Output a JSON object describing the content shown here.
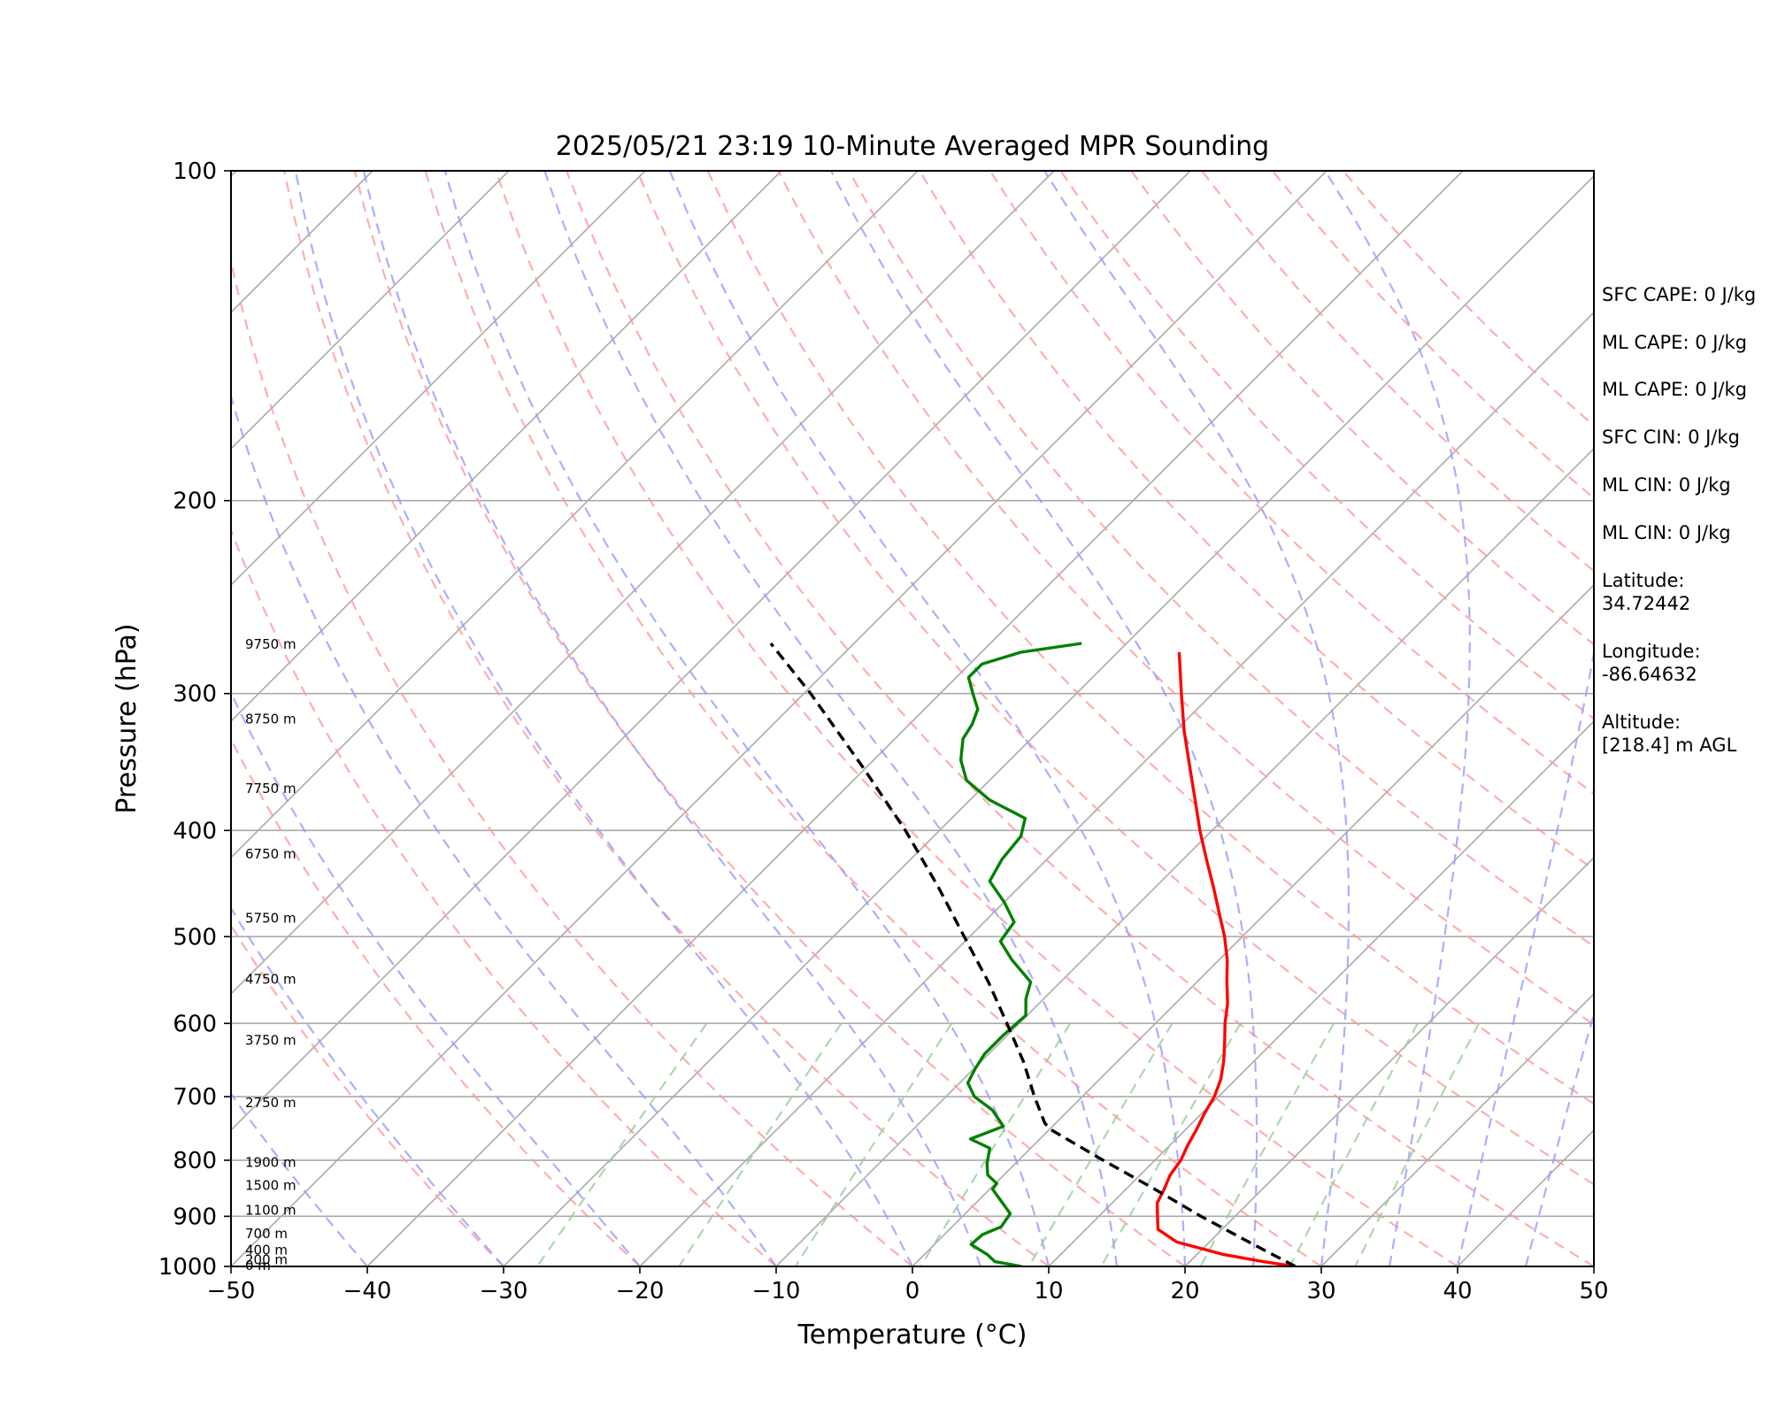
{
  "chart_data": {
    "type": "line",
    "title": "2025/05/21 23:19 10-Minute Averaged MPR Sounding",
    "xlabel": "Temperature (°C)",
    "ylabel": "Pressure (hPa)",
    "xlim": [
      -50,
      50
    ],
    "ylim": [
      1000,
      100
    ],
    "yscale": "log",
    "skew": true,
    "x_ticks": [
      "−50",
      "−40",
      "−30",
      "−20",
      "−10",
      "0",
      "10",
      "20",
      "30",
      "40",
      "50"
    ],
    "y_ticks": [
      "100",
      "200",
      "300",
      "400",
      "500",
      "600",
      "700",
      "800",
      "900",
      "1000"
    ],
    "series": [
      {
        "role": "temperature",
        "color": "#ff0000",
        "points": [
          [
            1000,
            28.1
          ],
          [
            990,
            25.4
          ],
          [
            975,
            21.9
          ],
          [
            950,
            17.6
          ],
          [
            925,
            15.3
          ],
          [
            900,
            14.3
          ],
          [
            875,
            13.3
          ],
          [
            850,
            12.8
          ],
          [
            825,
            12.2
          ],
          [
            800,
            11.9
          ],
          [
            775,
            11.3
          ],
          [
            750,
            10.8
          ],
          [
            725,
            10.2
          ],
          [
            700,
            9.7
          ],
          [
            675,
            8.9
          ],
          [
            650,
            7.8
          ],
          [
            625,
            6.5
          ],
          [
            600,
            5.1
          ],
          [
            575,
            3.8
          ],
          [
            550,
            2.2
          ],
          [
            525,
            0.6
          ],
          [
            500,
            -1.3
          ],
          [
            475,
            -3.5
          ],
          [
            450,
            -5.8
          ],
          [
            425,
            -8.3
          ],
          [
            400,
            -10.9
          ],
          [
            375,
            -13.5
          ],
          [
            350,
            -16.3
          ],
          [
            325,
            -19.3
          ],
          [
            300,
            -22.3
          ],
          [
            275,
            -25.5
          ]
        ]
      },
      {
        "role": "dewpoint",
        "color": "#008000",
        "points": [
          [
            1000,
            8.0
          ],
          [
            990,
            5.7
          ],
          [
            975,
            4.6
          ],
          [
            955,
            2.7
          ],
          [
            935,
            2.8
          ],
          [
            920,
            3.6
          ],
          [
            895,
            3.3
          ],
          [
            870,
            1.6
          ],
          [
            850,
            0.2
          ],
          [
            840,
            0.1
          ],
          [
            825,
            -1.2
          ],
          [
            805,
            -2.1
          ],
          [
            780,
            -3.0
          ],
          [
            765,
            -5.1
          ],
          [
            745,
            -3.6
          ],
          [
            720,
            -5.6
          ],
          [
            700,
            -7.9
          ],
          [
            680,
            -9.4
          ],
          [
            660,
            -9.9
          ],
          [
            640,
            -10.3
          ],
          [
            615,
            -10.3
          ],
          [
            590,
            -10.1
          ],
          [
            570,
            -11.3
          ],
          [
            550,
            -12.2
          ],
          [
            525,
            -15.2
          ],
          [
            505,
            -17.4
          ],
          [
            485,
            -17.8
          ],
          [
            465,
            -20.0
          ],
          [
            445,
            -22.6
          ],
          [
            425,
            -23.3
          ],
          [
            405,
            -23.6
          ],
          [
            390,
            -24.6
          ],
          [
            375,
            -28.6
          ],
          [
            360,
            -31.7
          ],
          [
            345,
            -33.6
          ],
          [
            330,
            -35.0
          ],
          [
            320,
            -35.4
          ],
          [
            310,
            -36.1
          ],
          [
            300,
            -37.6
          ],
          [
            290,
            -39.1
          ],
          [
            282,
            -39.1
          ],
          [
            275,
            -37.1
          ],
          [
            270,
            -33.3
          ]
        ]
      },
      {
        "role": "parcel",
        "color": "#000000",
        "points": [
          [
            1000,
            28.1
          ],
          [
            950,
            22.9
          ],
          [
            900,
            17.5
          ],
          [
            850,
            12.1
          ],
          [
            800,
            6.2
          ],
          [
            750,
            0.1
          ],
          [
            740,
            -0.8
          ],
          [
            700,
            -3.5
          ],
          [
            650,
            -6.9
          ],
          [
            600,
            -10.9
          ],
          [
            550,
            -15.3
          ],
          [
            500,
            -20.4
          ],
          [
            450,
            -26.0
          ],
          [
            400,
            -32.5
          ],
          [
            350,
            -40.3
          ],
          [
            300,
            -49.5
          ],
          [
            270,
            -56.1
          ]
        ]
      }
    ],
    "height_labels": [
      {
        "text": "9750 m",
        "p": 271
      },
      {
        "text": "8750 m",
        "p": 317
      },
      {
        "text": "7750 m",
        "p": 367
      },
      {
        "text": "6750 m",
        "p": 421
      },
      {
        "text": "5750 m",
        "p": 482
      },
      {
        "text": "4750 m",
        "p": 548
      },
      {
        "text": "3750 m",
        "p": 623
      },
      {
        "text": "2750 m",
        "p": 710
      },
      {
        "text": "1900 m",
        "p": 805
      },
      {
        "text": "1500 m",
        "p": 845
      },
      {
        "text": "1100 m",
        "p": 890
      },
      {
        "text": "700 m",
        "p": 935
      },
      {
        "text": "400 m",
        "p": 968
      },
      {
        "text": "200 m",
        "p": 988
      },
      {
        "text": "0 m",
        "p": 1000
      }
    ]
  },
  "annotations": {
    "sfc_cape": "SFC CAPE: 0 J/kg",
    "ml_cape_1": "ML CAPE: 0 J/kg",
    "ml_cape_2": "ML CAPE: 0 J/kg",
    "sfc_cin": "SFC CIN: 0 J/kg",
    "ml_cin_1": "ML CIN: 0 J/kg",
    "ml_cin_2": "ML CIN: 0 J/kg",
    "latitude": "Latitude:\n34.72442",
    "longitude": "Longitude:\n-86.64632",
    "altitude": "Altitude:\n[218.4] m AGL"
  },
  "colors": {
    "dry_adiabat": "#ff9999",
    "moist_adiabat": "#9999ff",
    "mixing_ratio": "#99cc99",
    "isotherm": "#aaaaaa"
  }
}
